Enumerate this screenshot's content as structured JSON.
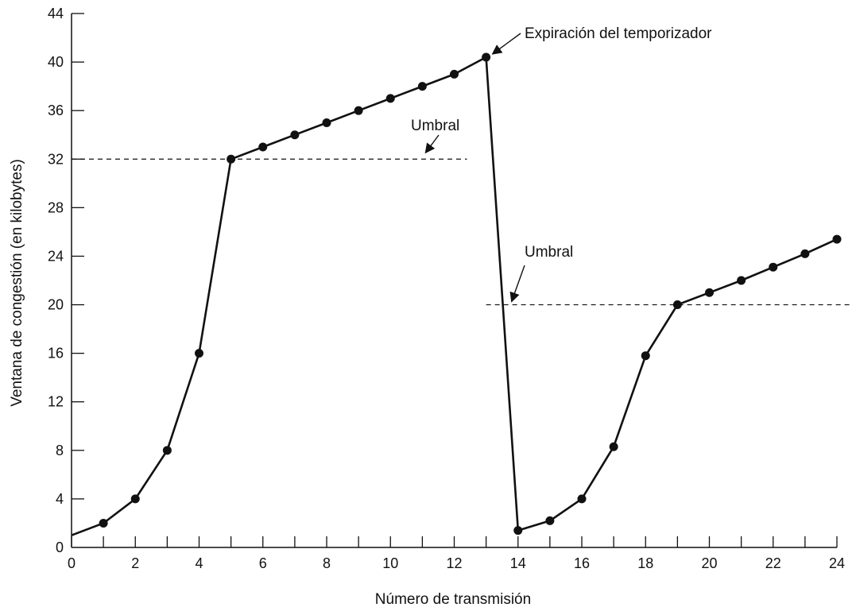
{
  "chart_data": {
    "type": "line",
    "title": "",
    "xlabel": "Número de transmisión",
    "ylabel": "Ventana de congestión (en kilobytes)",
    "xlim": [
      0,
      24
    ],
    "ylim": [
      0,
      44
    ],
    "x_ticks_minor": [
      0,
      1,
      2,
      3,
      4,
      5,
      6,
      7,
      8,
      9,
      10,
      11,
      12,
      13,
      14,
      15,
      16,
      17,
      18,
      19,
      20,
      21,
      22,
      23,
      24
    ],
    "x_tick_labels": [
      "0",
      "2",
      "4",
      "6",
      "8",
      "10",
      "12",
      "14",
      "16",
      "18",
      "20",
      "22",
      "24"
    ],
    "x_tick_values": [
      0,
      2,
      4,
      6,
      8,
      10,
      12,
      14,
      16,
      18,
      20,
      22,
      24
    ],
    "y_tick_values": [
      0,
      4,
      8,
      12,
      16,
      20,
      24,
      28,
      32,
      36,
      40,
      44
    ],
    "y_tick_labels": [
      "0",
      "4",
      "8",
      "12",
      "16",
      "20",
      "24",
      "28",
      "32",
      "36",
      "40",
      "44"
    ],
    "grid": false,
    "legend": "none",
    "series": [
      {
        "x": [
          0,
          1,
          2,
          3,
          4,
          5,
          6,
          7,
          8,
          9,
          10,
          11,
          12,
          13,
          14,
          15,
          16,
          17,
          18,
          19,
          20,
          21,
          22,
          23,
          24
        ],
        "y": [
          1,
          2,
          4,
          8,
          16,
          32,
          33,
          34,
          35,
          36,
          37,
          38,
          39,
          40.4,
          1.4,
          2.2,
          4,
          8.3,
          15.8,
          20,
          21,
          22,
          23.1,
          24.2,
          25.4
        ],
        "markers_on": [
          1,
          2,
          3,
          4,
          5,
          6,
          7,
          8,
          9,
          10,
          11,
          12,
          13,
          14,
          15,
          16,
          17,
          18,
          19,
          20,
          21,
          22,
          23,
          24
        ]
      }
    ],
    "thresholds": [
      {
        "label": "Umbral",
        "y": 32,
        "x_from": 0,
        "x_to": 12.4
      },
      {
        "label": "Umbral",
        "y": 20,
        "x_from": 13.0,
        "x_to": 24.4
      }
    ],
    "annotations": [
      {
        "text": "Expiración del temporizador"
      },
      {
        "text": "Umbral"
      },
      {
        "text": "Umbral"
      }
    ]
  }
}
